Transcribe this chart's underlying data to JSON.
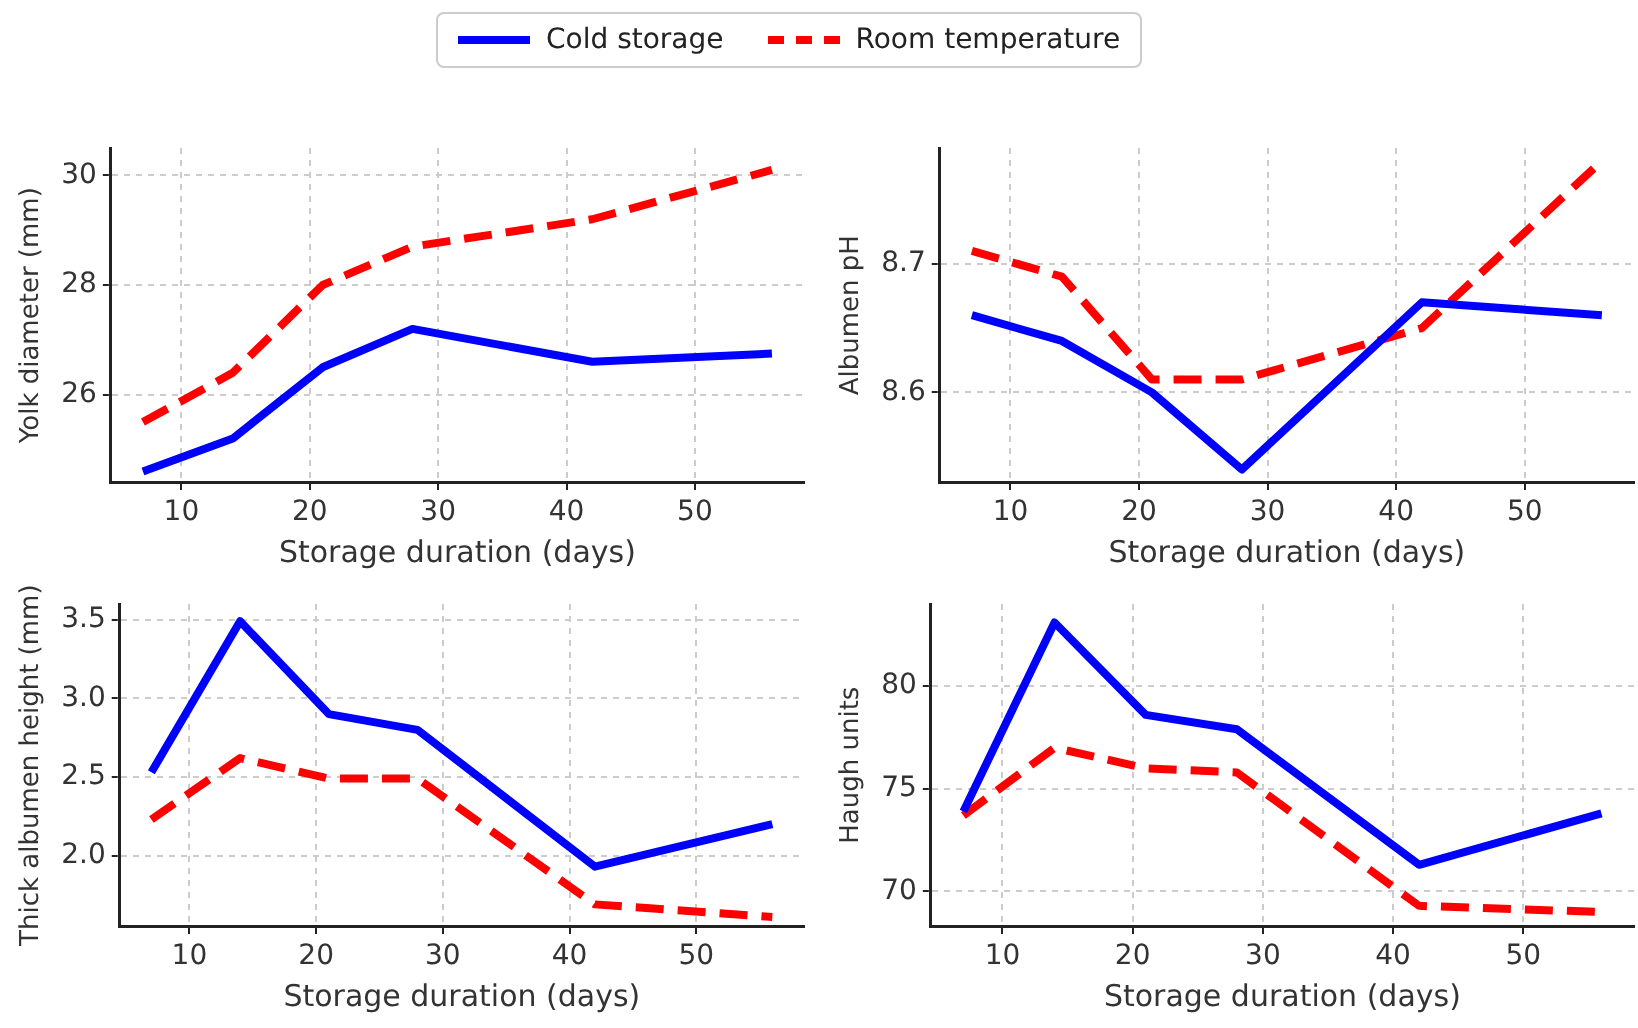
{
  "chart_data": [
    {
      "type": "line",
      "xlabel": "Storage duration (days)",
      "ylabel": "Yolk diameter (mm)",
      "xlim": [
        4.5,
        58.5
      ],
      "xticks": [
        10,
        20,
        30,
        40,
        50
      ],
      "ylim": [
        24.4,
        30.5
      ],
      "yticks": [
        26,
        28,
        30
      ],
      "grid": true,
      "legend": "top",
      "marker": "none",
      "series": [
        {
          "name": "Cold storage",
          "color": "#0000ff",
          "line_style": "solid",
          "x": [
            7,
            14,
            21,
            28,
            42,
            56
          ],
          "values": [
            24.6,
            25.2,
            26.5,
            27.2,
            26.6,
            26.75
          ]
        },
        {
          "name": "Room temperature",
          "color": "#ff0000",
          "line_style": "dashed",
          "x": [
            7,
            14,
            21,
            28,
            42,
            56
          ],
          "values": [
            25.5,
            26.4,
            28.0,
            28.7,
            29.2,
            30.1
          ]
        }
      ]
    },
    {
      "type": "line",
      "xlabel": "Storage duration (days)",
      "ylabel": "Albumen pH",
      "xlim": [
        4.5,
        58.5
      ],
      "xticks": [
        10,
        20,
        30,
        40,
        50
      ],
      "ylim": [
        8.53,
        8.79
      ],
      "yticks": [
        8.6,
        8.7
      ],
      "grid": true,
      "marker": "none",
      "series": [
        {
          "color": "#0000ff",
          "line_style": "solid",
          "x": [
            7,
            14,
            21,
            28,
            42,
            56
          ],
          "values": [
            8.66,
            8.64,
            8.6,
            8.54,
            8.67,
            8.66
          ]
        },
        {
          "color": "#ff0000",
          "line_style": "dashed",
          "x": [
            7,
            14,
            21,
            28,
            42,
            56
          ],
          "values": [
            8.71,
            8.69,
            8.61,
            8.61,
            8.65,
            8.78
          ]
        }
      ]
    },
    {
      "type": "line",
      "xlabel": "Storage duration (days)",
      "ylabel": "Thick albumen height (mm)",
      "xlim": [
        4.5,
        58.5
      ],
      "xticks": [
        10,
        20,
        30,
        40,
        50
      ],
      "ylim": [
        1.55,
        3.6
      ],
      "yticks": [
        {
          "value": 2,
          "label": "2.0"
        },
        2.5,
        {
          "value": 3,
          "label": "3.0"
        },
        3.5
      ],
      "grid": true,
      "marker": "none",
      "series": [
        {
          "color": "#0000ff",
          "line_style": "solid",
          "x": [
            7,
            14,
            21,
            28,
            42,
            56
          ],
          "values": [
            2.53,
            3.49,
            2.9,
            2.8,
            1.93,
            2.2
          ]
        },
        {
          "color": "#ff0000",
          "line_style": "dashed",
          "x": [
            7,
            14,
            21,
            28,
            42,
            56
          ],
          "values": [
            2.23,
            2.62,
            2.49,
            2.49,
            1.69,
            1.61
          ]
        }
      ]
    },
    {
      "type": "line",
      "xlabel": "Storage duration (days)",
      "ylabel": "Haugh units",
      "xlim": [
        4.5,
        58.5
      ],
      "xticks": [
        10,
        20,
        30,
        40,
        50
      ],
      "ylim": [
        68.3,
        84
      ],
      "yticks": [
        70,
        75,
        80
      ],
      "grid": true,
      "marker": "none",
      "series": [
        {
          "color": "#0000ff",
          "line_style": "solid",
          "x": [
            7,
            14,
            21,
            28,
            42,
            56
          ],
          "values": [
            73.9,
            83.1,
            78.6,
            77.9,
            71.3,
            73.8
          ]
        },
        {
          "color": "#ff0000",
          "line_style": "dashed",
          "x": [
            7,
            14,
            21,
            28,
            42,
            56
          ],
          "values": [
            73.7,
            77.0,
            76.0,
            75.8,
            69.3,
            69.0
          ]
        }
      ]
    }
  ]
}
